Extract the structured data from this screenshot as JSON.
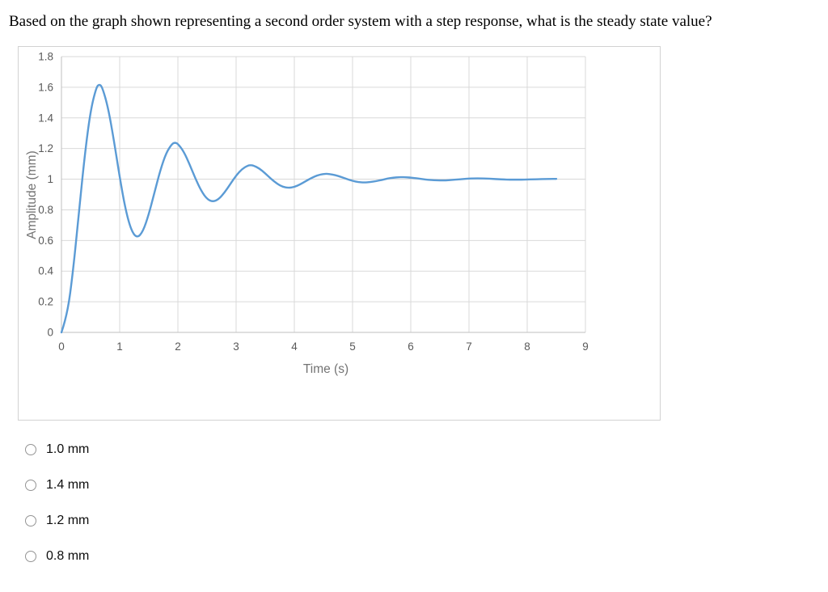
{
  "question": {
    "text": "Based on the graph shown representing a second order system with a step response, what is the steady state value?"
  },
  "options": [
    {
      "label": "1.0 mm",
      "selected": false
    },
    {
      "label": "1.4 mm",
      "selected": false
    },
    {
      "label": "1.2 mm",
      "selected": false
    },
    {
      "label": "0.8 mm",
      "selected": false
    }
  ],
  "chart_data": {
    "type": "line",
    "title": "",
    "xlabel": "Time (s)",
    "ylabel": "Amplitude (mm)",
    "xlim": [
      0,
      9
    ],
    "ylim": [
      0,
      1.8
    ],
    "x_ticks": [
      0,
      1,
      2,
      3,
      4,
      5,
      6,
      7,
      8,
      9
    ],
    "x_tick_labels": [
      "0",
      "1",
      "2",
      "3",
      "4",
      "5",
      "6",
      "7",
      "8",
      "9"
    ],
    "y_ticks": [
      0,
      0.2,
      0.4,
      0.6,
      0.8,
      1,
      1.2,
      1.4,
      1.6,
      1.8
    ],
    "y_tick_labels": [
      "0",
      "0.2",
      "0.4",
      "0.6",
      "0.8",
      "1",
      "1.2",
      "1.4",
      "1.6",
      "1.8"
    ],
    "grid": true,
    "legend": "none",
    "line_color": "#5B9BD5",
    "grid_color": "#d9d9d9",
    "axis_line_color": "#bfbfbf",
    "axis_text_color": "#595959",
    "steady_state_value": 1.0,
    "peak_overshoot_value": 1.62,
    "series": [
      {
        "name": "step response",
        "points": [
          [
            0,
            0
          ],
          [
            0.1,
            0.112
          ],
          [
            0.2,
            0.402
          ],
          [
            0.3,
            0.782
          ],
          [
            0.4,
            1.158
          ],
          [
            0.5,
            1.449
          ],
          [
            0.6,
            1.601
          ],
          [
            0.65,
            1.62
          ],
          [
            0.7,
            1.602
          ],
          [
            0.8,
            1.47
          ],
          [
            0.9,
            1.256
          ],
          [
            1,
            1.014
          ],
          [
            1.1,
            0.802
          ],
          [
            1.2,
            0.663
          ],
          [
            1.3,
            0.615
          ],
          [
            1.4,
            0.658
          ],
          [
            1.5,
            0.77
          ],
          [
            1.6,
            0.917
          ],
          [
            1.7,
            1.061
          ],
          [
            1.8,
            1.173
          ],
          [
            1.9,
            1.231
          ],
          [
            1.95,
            1.239
          ],
          [
            2,
            1.232
          ],
          [
            2.1,
            1.181
          ],
          [
            2.2,
            1.098
          ],
          [
            2.3,
            1.005
          ],
          [
            2.4,
            0.924
          ],
          [
            2.5,
            0.87
          ],
          [
            2.6,
            0.852
          ],
          [
            2.7,
            0.869
          ],
          [
            2.8,
            0.912
          ],
          [
            2.9,
            0.968
          ],
          [
            3,
            1.024
          ],
          [
            3.1,
            1.066
          ],
          [
            3.2,
            1.089
          ],
          [
            3.25,
            1.092
          ],
          [
            3.3,
            1.089
          ],
          [
            3.4,
            1.07
          ],
          [
            3.5,
            1.038
          ],
          [
            3.6,
            1.002
          ],
          [
            3.7,
            0.971
          ],
          [
            3.8,
            0.95
          ],
          [
            3.9,
            0.943
          ],
          [
            4,
            0.949
          ],
          [
            4.1,
            0.966
          ],
          [
            4.2,
            0.988
          ],
          [
            4.3,
            1.009
          ],
          [
            4.4,
            1.026
          ],
          [
            4.5,
            1.034
          ],
          [
            4.55,
            1.035
          ],
          [
            4.6,
            1.034
          ],
          [
            4.7,
            1.027
          ],
          [
            4.8,
            1.015
          ],
          [
            4.9,
            1.001
          ],
          [
            5,
            0.989
          ],
          [
            5.1,
            0.981
          ],
          [
            5.2,
            0.978
          ],
          [
            5.3,
            0.981
          ],
          [
            5.4,
            0.987
          ],
          [
            5.5,
            0.995
          ],
          [
            5.6,
            1.004
          ],
          [
            5.7,
            1.01
          ],
          [
            5.8,
            1.013
          ],
          [
            5.85,
            1.013
          ],
          [
            5.9,
            1.013
          ],
          [
            6,
            1.01
          ],
          [
            6.1,
            1.006
          ],
          [
            6.2,
            1.0
          ],
          [
            6.3,
            0.996
          ],
          [
            6.4,
            0.993
          ],
          [
            6.5,
            0.992
          ],
          [
            6.6,
            0.992
          ],
          [
            6.7,
            0.995
          ],
          [
            6.8,
            0.998
          ],
          [
            6.9,
            1.001
          ],
          [
            7,
            1.004
          ],
          [
            7.1,
            1.005
          ],
          [
            7.2,
            1.005
          ],
          [
            7.3,
            1.004
          ],
          [
            7.4,
            1.002
          ],
          [
            7.5,
            1.0
          ],
          [
            7.6,
            0.998
          ],
          [
            7.7,
            0.997
          ],
          [
            7.8,
            0.997
          ],
          [
            7.9,
            0.997
          ],
          [
            8,
            0.998
          ],
          [
            8.1,
            0.999
          ],
          [
            8.2,
            1.0
          ],
          [
            8.3,
            1.001
          ],
          [
            8.4,
            1.002
          ],
          [
            8.5,
            1.002
          ]
        ]
      }
    ]
  },
  "colors": {
    "chart_border": "#d2d2d2",
    "radio_border": "#949494",
    "question_text": "#000000",
    "option_text": "#0d0d0d"
  }
}
